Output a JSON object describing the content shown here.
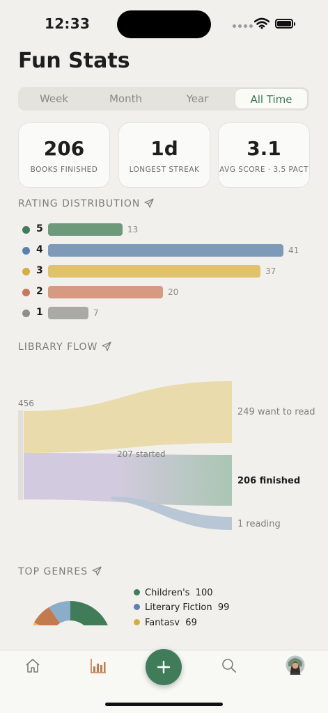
{
  "status": {
    "time": "12:33"
  },
  "header": {
    "title": "Fun Stats"
  },
  "periods": [
    {
      "label": "Week",
      "active": false
    },
    {
      "label": "Month",
      "active": false
    },
    {
      "label": "Year",
      "active": false
    },
    {
      "label": "All Time",
      "active": true
    }
  ],
  "cards": [
    {
      "value": "206",
      "label": "BOOKS FINISHED"
    },
    {
      "value": "1d",
      "label": "LONGEST STREAK"
    },
    {
      "value": "3.1",
      "label": "AVG SCORE · 3.5 PACT"
    }
  ],
  "rating": {
    "title": "RATING DISTRIBUTION",
    "rows": [
      {
        "star": "5",
        "count": 13,
        "color": "#3f7c57",
        "barColor": "#6e9a7c"
      },
      {
        "star": "4",
        "count": 41,
        "color": "#5b80ad",
        "barColor": "#7e9ab9"
      },
      {
        "star": "3",
        "count": 37,
        "color": "#d5ae42",
        "barColor": "#dfc26a"
      },
      {
        "star": "2",
        "count": 20,
        "color": "#c9775a",
        "barColor": "#d69a83"
      },
      {
        "star": "1",
        "count": 7,
        "color": "#8e8e8a",
        "barColor": "#a9a9a6"
      }
    ]
  },
  "flow": {
    "title": "LIBRARY FLOW",
    "total": "456",
    "started": "207 started",
    "want": "249 want to read",
    "finished": "206 finished",
    "reading": "1 reading"
  },
  "genres": {
    "title": "TOP GENRES",
    "items": [
      {
        "name": "Children's",
        "count": "100",
        "color": "#3f7c57"
      },
      {
        "name": "Literary Fiction",
        "count": "99",
        "color": "#5b80ad"
      },
      {
        "name": "Fantasy",
        "count": "69",
        "color": "#d5ae42"
      }
    ]
  },
  "tabs": [
    "home-icon",
    "stats-icon",
    "add-icon",
    "search-icon",
    "profile-avatar"
  ]
}
